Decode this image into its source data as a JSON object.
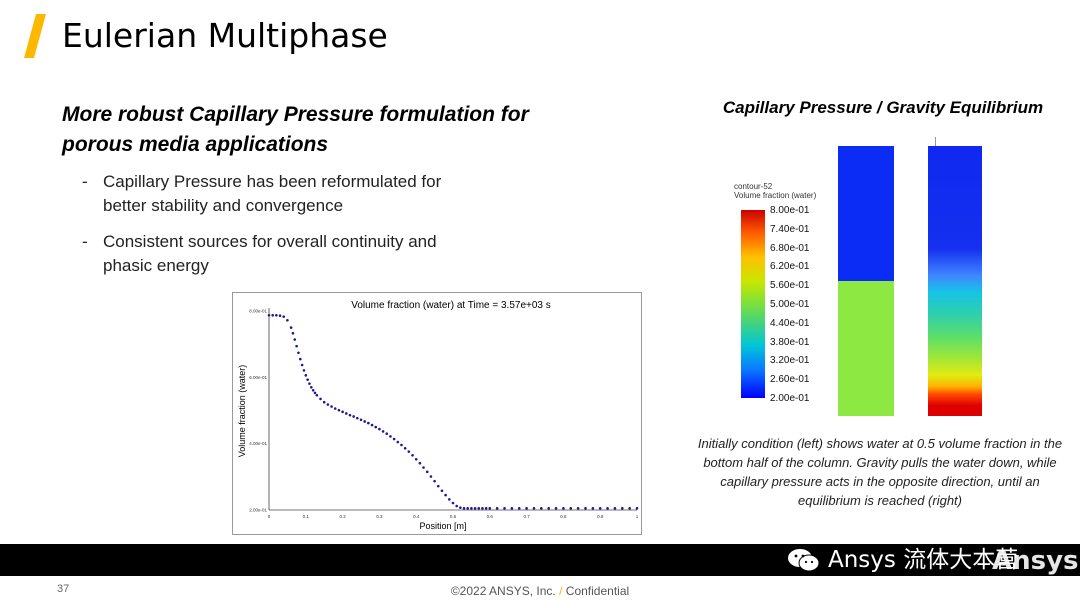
{
  "slide": {
    "title": "Eulerian Multiphase",
    "heading": "More robust Capillary Pressure formulation for porous media applications",
    "bullets": [
      "Capillary Pressure has been reformulated for better stability and convergence",
      "Consistent sources for overall continuity and phasic energy"
    ],
    "accent_color": "#ffb800"
  },
  "chart_data": {
    "type": "scatter",
    "title": "Volume fraction (water) at Time = 3.57e+03 s",
    "xlabel": "Position [m]",
    "ylabel": "Volume fraction (water)",
    "x_ticks": [
      "0",
      "0.1",
      "0.2",
      "0.3",
      "0.4",
      "0.5",
      "0.6",
      "0.7",
      "0.8",
      "0.9",
      "1"
    ],
    "y_ticks": [
      "2.00e-01",
      "4.00e-01",
      "6.00e-01",
      "8.00e-01"
    ],
    "xlim": [
      0,
      1
    ],
    "ylim": [
      0.2,
      0.8
    ],
    "grid": false,
    "series": [
      {
        "color": "#1a1a8c",
        "x": [
          0.0,
          0.01,
          0.02,
          0.03,
          0.04,
          0.05,
          0.06,
          0.065,
          0.07,
          0.075,
          0.08,
          0.085,
          0.09,
          0.095,
          0.1,
          0.105,
          0.11,
          0.115,
          0.12,
          0.125,
          0.13,
          0.14,
          0.15,
          0.16,
          0.17,
          0.18,
          0.19,
          0.2,
          0.21,
          0.22,
          0.23,
          0.24,
          0.25,
          0.26,
          0.27,
          0.28,
          0.29,
          0.3,
          0.31,
          0.32,
          0.33,
          0.34,
          0.35,
          0.36,
          0.37,
          0.38,
          0.39,
          0.4,
          0.41,
          0.42,
          0.43,
          0.44,
          0.45,
          0.46,
          0.47,
          0.48,
          0.49,
          0.5,
          0.51,
          0.52,
          0.53,
          0.54,
          0.55,
          0.56,
          0.57,
          0.58,
          0.59,
          0.6,
          0.62,
          0.64,
          0.66,
          0.68,
          0.7,
          0.72,
          0.74,
          0.76,
          0.78,
          0.8,
          0.82,
          0.84,
          0.86,
          0.88,
          0.9,
          0.92,
          0.94,
          0.96,
          0.98,
          1.0
        ],
        "y": [
          0.787,
          0.787,
          0.787,
          0.786,
          0.783,
          0.772,
          0.75,
          0.733,
          0.714,
          0.694,
          0.674,
          0.655,
          0.637,
          0.621,
          0.606,
          0.593,
          0.581,
          0.57,
          0.561,
          0.553,
          0.546,
          0.535,
          0.525,
          0.518,
          0.512,
          0.506,
          0.501,
          0.496,
          0.491,
          0.486,
          0.482,
          0.477,
          0.472,
          0.467,
          0.462,
          0.456,
          0.45,
          0.444,
          0.437,
          0.43,
          0.422,
          0.414,
          0.405,
          0.396,
          0.386,
          0.376,
          0.365,
          0.353,
          0.341,
          0.328,
          0.315,
          0.301,
          0.287,
          0.272,
          0.258,
          0.245,
          0.232,
          0.221,
          0.212,
          0.207,
          0.205,
          0.205,
          0.205,
          0.205,
          0.205,
          0.205,
          0.205,
          0.205,
          0.205,
          0.205,
          0.205,
          0.205,
          0.205,
          0.205,
          0.205,
          0.205,
          0.205,
          0.205,
          0.205,
          0.205,
          0.205,
          0.205,
          0.205,
          0.205,
          0.205,
          0.205,
          0.205,
          0.205
        ]
      }
    ]
  },
  "equilibrium": {
    "title": "Capillary Pressure / Gravity Equilibrium",
    "legend_name": "contour-52",
    "legend_label": "Volume fraction (water)",
    "legend_ticks": [
      "8.00e-01",
      "7.40e-01",
      "6.80e-01",
      "6.20e-01",
      "5.60e-01",
      "5.00e-01",
      "4.40e-01",
      "3.80e-01",
      "3.20e-01",
      "2.60e-01",
      "2.00e-01"
    ],
    "left_column": {
      "upper_fraction": 0.2,
      "lower_fraction": 0.5
    },
    "right_column": {
      "top_fraction": 0.2,
      "bottom_fraction": 0.8
    },
    "caption": "Initially condition (left) shows water at 0.5 volume fraction in the bottom half of the column. Gravity pulls the water down, while capillary pressure acts in the opposite direction, until an equilibrium is reached (right)"
  },
  "footer": {
    "page_number": "37",
    "copyright_left": "©2022 ANSYS, Inc.",
    "separator": "/",
    "copyright_right": "Confidential",
    "watermark_text": "Ansys 流体大本营",
    "logo_text": "Ansys"
  }
}
